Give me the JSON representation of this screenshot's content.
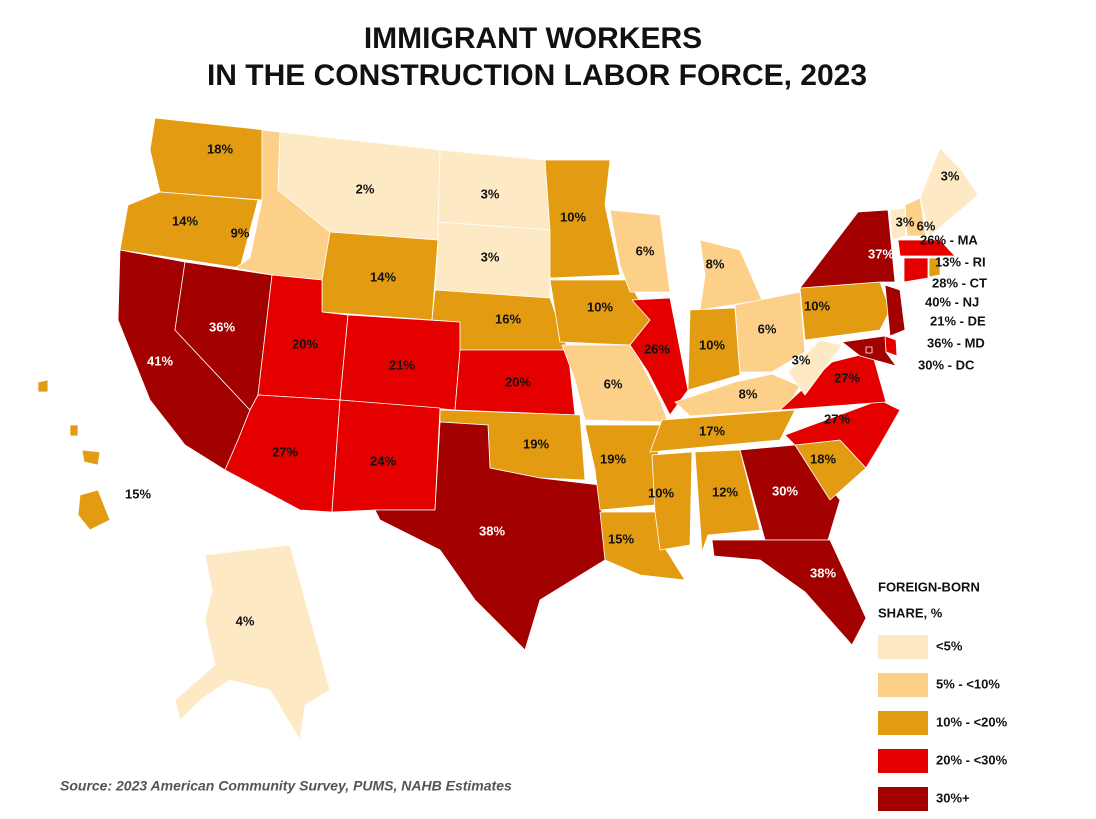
{
  "map": {
    "title": [
      "IMMIGRANT WORKERS",
      "IN THE CONSTRUCTION LABOR FORCE, 2023"
    ],
    "regions": [
      {
        "value": 18,
        "label": "18%"
      },
      {
        "value": 14,
        "label": "14%"
      },
      {
        "value": 41,
        "label": "41%"
      },
      {
        "value": 36,
        "label": "36%"
      },
      {
        "value": 9,
        "label": "9%"
      },
      {
        "value": 2,
        "label": "2%"
      },
      {
        "value": 14,
        "label": "14%"
      },
      {
        "value": 20,
        "label": "20%"
      },
      {
        "value": 27,
        "label": "27%"
      },
      {
        "value": 21,
        "label": "21%"
      },
      {
        "value": 24,
        "label": "24%"
      },
      {
        "value": 3,
        "label": "3%"
      },
      {
        "value": 3,
        "label": "3%"
      },
      {
        "value": 16,
        "label": "16%"
      },
      {
        "value": 20,
        "label": "20%"
      },
      {
        "value": 19,
        "label": "19%"
      },
      {
        "value": 38,
        "label": "38%"
      },
      {
        "value": 10,
        "label": "10%"
      },
      {
        "value": 10,
        "label": "10%"
      },
      {
        "value": 6,
        "label": "6%"
      },
      {
        "value": 19,
        "label": "19%"
      },
      {
        "value": 15,
        "label": "15%"
      },
      {
        "value": 6,
        "label": "6%"
      },
      {
        "value": 26,
        "label": "26%"
      },
      {
        "value": 8,
        "label": "8%"
      },
      {
        "value": 10,
        "label": "10%"
      },
      {
        "value": 6,
        "label": "6%"
      },
      {
        "value": 8,
        "label": "8%"
      },
      {
        "value": 17,
        "label": "17%"
      },
      {
        "value": 10,
        "label": "10%"
      },
      {
        "value": 12,
        "label": "12%"
      },
      {
        "value": 30,
        "label": "30%"
      },
      {
        "value": 38,
        "label": "38%"
      },
      {
        "value": 18,
        "label": "18%"
      },
      {
        "value": 27,
        "label": "27%"
      },
      {
        "value": 27,
        "label": "27%"
      },
      {
        "value": 3,
        "label": "3%"
      },
      {
        "value": 10,
        "label": "10%"
      },
      {
        "value": 37,
        "label": "37%"
      },
      {
        "value": 40,
        "label": "40% - NJ"
      },
      {
        "value": 21,
        "label": "21% - DE"
      },
      {
        "value": 36,
        "label": "36% - MD"
      },
      {
        "value": 30,
        "label": "30% - DC"
      },
      {
        "value": 3,
        "label": "3%"
      },
      {
        "value": 6,
        "label": "6%"
      },
      {
        "value": 3,
        "label": "3%"
      },
      {
        "value": 26,
        "label": "26% - MA"
      },
      {
        "value": 28,
        "label": "28% - CT"
      },
      {
        "value": 13,
        "label": "13% - RI"
      },
      {
        "value": 4,
        "label": "4%"
      },
      {
        "value": 15,
        "label": "15%"
      }
    ],
    "legend": {
      "title": [
        "FOREIGN-BORN",
        "SHARE, %"
      ],
      "breaks": [
        5,
        10,
        20,
        30
      ],
      "bins": [
        {
          "label": "<5%",
          "color": "#fde9c3"
        },
        {
          "label": "5% - <10%",
          "color": "#fcd089"
        },
        {
          "label": "10% - <20%",
          "color": "#e39b12"
        },
        {
          "label": "20% - <30%",
          "color": "#e50000"
        },
        {
          "label": "30%+",
          "color": "#a30000"
        }
      ]
    },
    "source": "Source: 2023 American Community Survey, PUMS, NAHB Estimates"
  }
}
